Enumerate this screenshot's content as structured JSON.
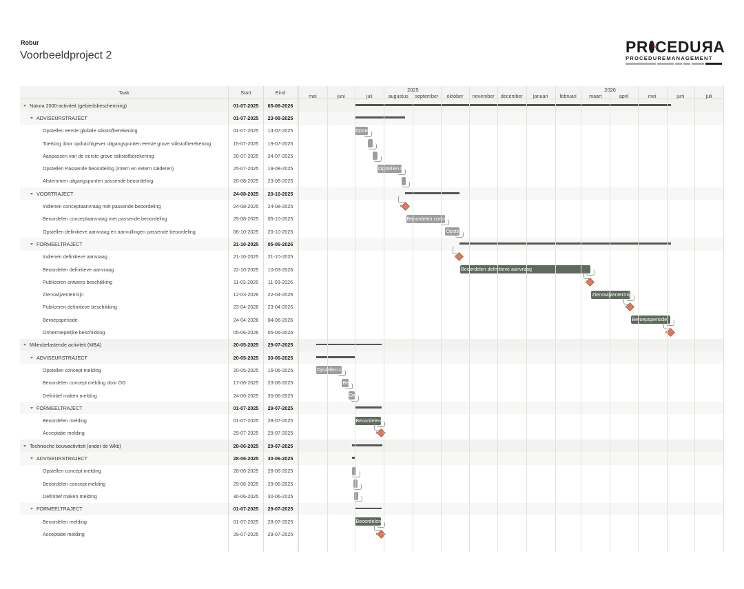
{
  "header": {
    "company": "Robur",
    "project_title": "Voorbeeldproject 2"
  },
  "logo": {
    "name": "PROCEDURA",
    "letters_a": "PR",
    "letters_b": "CEDU",
    "letters_c": "R",
    "letters_d": "A",
    "tagline": "PROCEDUREMANAGEMENT"
  },
  "columns": {
    "task": "Taak",
    "start": "Start",
    "end": "Eind"
  },
  "timeline": {
    "years": [
      "2025",
      "2026"
    ],
    "months": [
      "mei",
      "juni",
      "juli",
      "augustus",
      "september",
      "oktober",
      "november",
      "december",
      "januari",
      "februari",
      "maart",
      "april",
      "mei",
      "juni",
      "juli"
    ]
  },
  "rows": [
    {
      "level": 0,
      "name": "Natura 2000-activiteit (gebiedsbescherming)",
      "start": "01-07-2025",
      "end": "05-06-2026",
      "kind": "summary"
    },
    {
      "level": 1,
      "name": "ADVISEURSTRAJECT",
      "start": "01-07-2025",
      "end": "23-08-2025",
      "kind": "summary"
    },
    {
      "level": 2,
      "name": "Opstellen eerste globale stikstofberekening",
      "start": "01-07-2025",
      "end": "14-07-2025",
      "kind": "task",
      "bar_label": "Opstellen eerste globale stikstofberekening",
      "color": "grey"
    },
    {
      "level": 2,
      "name": "Toetsing door opdrachtgever uitgangspunten eerste grove stikstofberekening",
      "start": "15-07-2025",
      "end": "19-07-2025",
      "kind": "task",
      "bar_label": "",
      "color": "grey"
    },
    {
      "level": 2,
      "name": "Aanpassen van de eerste grove stikstofberekening",
      "start": "20-07-2025",
      "end": "24-07-2025",
      "kind": "task",
      "bar_label": "",
      "color": "grey"
    },
    {
      "level": 2,
      "name": "Opstellen Passende beoordeling (intern en extern salderen)",
      "start": "25-07-2025",
      "end": "19-08-2025",
      "kind": "task",
      "bar_label": "Opstellen Passende beoordeling",
      "color": "grey"
    },
    {
      "level": 2,
      "name": "Afstemmen uitgangspunten passende beoordeling",
      "start": "20-08-2025",
      "end": "23-08-2025",
      "kind": "task",
      "bar_label": "",
      "color": "grey"
    },
    {
      "level": 1,
      "name": "VOORTRAJECT",
      "start": "24-08-2025",
      "end": "20-10-2025",
      "kind": "summary"
    },
    {
      "level": 2,
      "name": "Indienen conceptaanvraag mét passende beoordeling",
      "start": "24-08-2025",
      "end": "24-08-2025",
      "kind": "milestone"
    },
    {
      "level": 2,
      "name": "Beoordelen conceptaanvraag met passende beoordeling",
      "start": "25-08-2025",
      "end": "05-10-2025",
      "kind": "task",
      "bar_label": "Beoordelen conceptaanvraag met passende beoordeling",
      "color": "grey"
    },
    {
      "level": 2,
      "name": "Opstellen definitieve aanvraag en aanvullingen passende beoordeling",
      "start": "06-10-2025",
      "end": "20-10-2025",
      "kind": "task",
      "bar_label": "Opstellen definitieve aanvraag",
      "color": "grey"
    },
    {
      "level": 1,
      "name": "FORMEELTRAJECT",
      "start": "21-10-2025",
      "end": "05-06-2026",
      "kind": "summary"
    },
    {
      "level": 2,
      "name": "Indienen definitieve aanvraag",
      "start": "21-10-2025",
      "end": "21-10-2025",
      "kind": "milestone"
    },
    {
      "level": 2,
      "name": "Beoordelen definitieve aanvraag",
      "start": "22-10-2025",
      "end": "10-03-2026",
      "kind": "task",
      "bar_label": "Beoordelen definitieve aanvraag",
      "color": "green"
    },
    {
      "level": 2,
      "name": "Publiceren ontwerp beschikking",
      "start": "11-03-2026",
      "end": "11-03-2026",
      "kind": "milestone"
    },
    {
      "level": 2,
      "name": "Zienswijzentermijn",
      "start": "12-03-2026",
      "end": "22-04-2026",
      "kind": "task",
      "bar_label": "Zienswijzentermijn",
      "color": "green"
    },
    {
      "level": 2,
      "name": "Publiceren definitieve beschikking",
      "start": "23-04-2026",
      "end": "23-04-2026",
      "kind": "milestone"
    },
    {
      "level": 2,
      "name": "Beroepsperiode",
      "start": "24-04-2026",
      "end": "04-06-2026",
      "kind": "task",
      "bar_label": "Beroepsperiode",
      "color": "green"
    },
    {
      "level": 2,
      "name": "Onherroepelijke beschikking",
      "start": "05-06-2026",
      "end": "05-06-2026",
      "kind": "milestone"
    },
    {
      "level": 0,
      "name": "Milieubelastende activiteit (MBA)",
      "start": "20-05-2025",
      "end": "29-07-2025",
      "kind": "summary"
    },
    {
      "level": 1,
      "name": "ADVISEURSTRAJECT",
      "start": "20-05-2025",
      "end": "30-06-2025",
      "kind": "summary"
    },
    {
      "level": 2,
      "name": "Opstellen concept melding",
      "start": "20-05-2025",
      "end": "16-06-2025",
      "kind": "task",
      "bar_label": "Opstellen concept melding",
      "color": "grey"
    },
    {
      "level": 2,
      "name": "Beoordelen concept melding door OG",
      "start": "17-06-2025",
      "end": "23-06-2025",
      "kind": "task",
      "bar_label": "Beoordelen concept melding door OG",
      "color": "grey"
    },
    {
      "level": 2,
      "name": "Definitief maken melding",
      "start": "24-06-2025",
      "end": "30-06-2025",
      "kind": "task",
      "bar_label": "Definitief maken melding",
      "color": "grey"
    },
    {
      "level": 1,
      "name": "FORMEELTRAJECT",
      "start": "01-07-2025",
      "end": "29-07-2025",
      "kind": "summary"
    },
    {
      "level": 2,
      "name": "Beoordelen melding",
      "start": "01-07-2025",
      "end": "28-07-2025",
      "kind": "task",
      "bar_label": "Beoordelen melding",
      "color": "green"
    },
    {
      "level": 2,
      "name": "Acceptatie melding",
      "start": "29-07-2025",
      "end": "29-07-2025",
      "kind": "milestone"
    },
    {
      "level": 0,
      "name": "Technische bouwactiviteit (onder de Wkb)",
      "start": "28-06-2025",
      "end": "29-07-2025",
      "kind": "summary"
    },
    {
      "level": 1,
      "name": "ADVISEURSTRAJECT",
      "start": "28-06-2025",
      "end": "30-06-2025",
      "kind": "summary"
    },
    {
      "level": 2,
      "name": "Opstellen concept melding",
      "start": "28-06-2025",
      "end": "28-06-2025",
      "kind": "task",
      "bar_label": "",
      "color": "grey"
    },
    {
      "level": 2,
      "name": "Beoordelen concept melding",
      "start": "29-06-2025",
      "end": "29-06-2025",
      "kind": "task",
      "bar_label": "",
      "color": "grey"
    },
    {
      "level": 2,
      "name": "Definitief maken melding",
      "start": "30-06-2025",
      "end": "30-06-2025",
      "kind": "task",
      "bar_label": "",
      "color": "grey"
    },
    {
      "level": 1,
      "name": "FORMEELTRAJECT",
      "start": "01-07-2025",
      "end": "29-07-2025",
      "kind": "summary"
    },
    {
      "level": 2,
      "name": "Beoordelen melding",
      "start": "01-07-2025",
      "end": "28-07-2025",
      "kind": "task",
      "bar_label": "Beoordelen melding",
      "color": "green"
    },
    {
      "level": 2,
      "name": "Acceptatie melding",
      "start": "29-07-2025",
      "end": "29-07-2025",
      "kind": "milestone"
    }
  ],
  "colors": {
    "grey_bar": "#9d9d9b",
    "green_bar": "#5e6a5c",
    "milestone": "#df7b58",
    "summary": "#555555",
    "group_row": "#f2f2f0"
  },
  "icons": {
    "collapse": "caret-down-icon"
  }
}
